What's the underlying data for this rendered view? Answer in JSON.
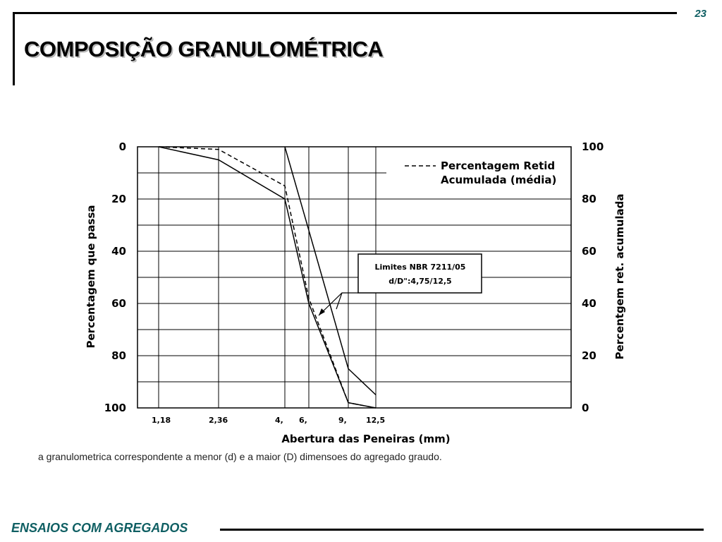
{
  "slide": {
    "page_number": "23",
    "title": "COMPOSIÇÃO GRANULOMÉTRICA",
    "caption": "a granulometrica correspondente a menor (d) e a maior (D) dimensoes do agregado graudo.",
    "footer": "ENSAIOS COM AGREGADOS"
  },
  "chart_data": {
    "type": "line",
    "xlabel": "Abertura das Peneiras (mm)",
    "ylabel_left": "Percentagem que passa",
    "ylabel_right": "Percentgem ret. acumulada",
    "x_ticks": [
      "1,18",
      "2,36",
      "4,",
      "6,",
      "9,",
      "12,5"
    ],
    "x_tick_values": [
      1.18,
      2.36,
      4.75,
      6.3,
      9.5,
      12.5
    ],
    "left_ticks": [
      "0",
      "20",
      "40",
      "60",
      "80",
      "100"
    ],
    "right_ticks": [
      "100",
      "80",
      "60",
      "40",
      "20",
      "0"
    ],
    "left_ylim": [
      0,
      100
    ],
    "right_ylim": [
      0,
      100
    ],
    "left_axis_inverted": true,
    "grid": true,
    "legend": {
      "position": "top-right",
      "entries": [
        "Percentagem Retid",
        "Acumulada (média)"
      ],
      "line_style": "dashed"
    },
    "annotation": {
      "lines": [
        "Limites NBR 7211/05",
        "d/D\":4,75/12,5"
      ]
    },
    "series": [
      {
        "style": "solid",
        "points": [
          [
            1.18,
            0
          ],
          [
            2.36,
            5
          ],
          [
            4.75,
            20
          ],
          [
            6.3,
            60
          ],
          [
            9.5,
            98
          ],
          [
            12.5,
            100
          ]
        ]
      },
      {
        "style": "solid",
        "points": [
          [
            4.75,
            0
          ],
          [
            6.3,
            32
          ],
          [
            9.5,
            85
          ],
          [
            12.5,
            95
          ]
        ]
      },
      {
        "style": "dashed",
        "points": [
          [
            1.18,
            0
          ],
          [
            2.36,
            1
          ],
          [
            4.75,
            15
          ],
          [
            6.3,
            58
          ],
          [
            9.5,
            98
          ],
          [
            12.5,
            100
          ]
        ]
      }
    ]
  }
}
